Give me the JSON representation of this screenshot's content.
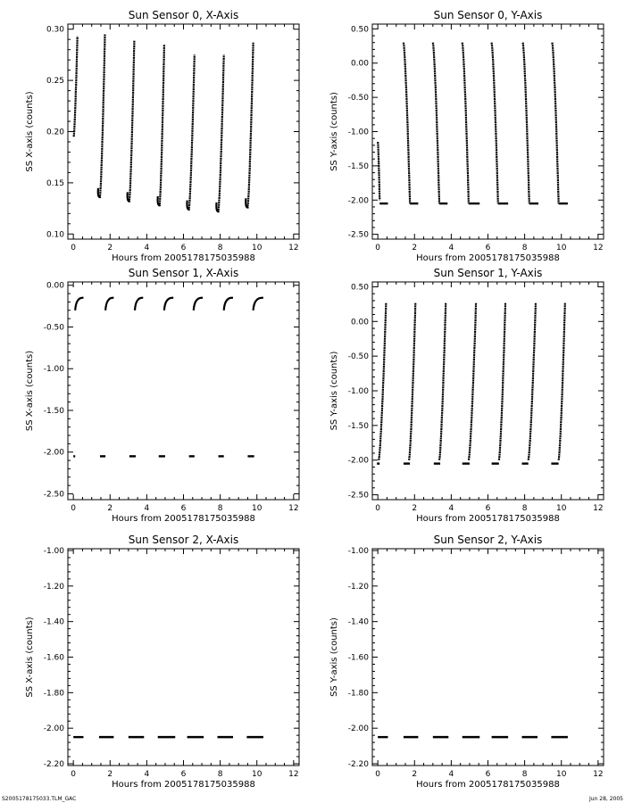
{
  "footer": {
    "filename": "S2005178175033.TLM_GAC",
    "date": "Jun 28, 2005"
  },
  "chart_data": [
    {
      "type": "scatter",
      "title": "Sun Sensor 0, X-Axis",
      "xlabel": "Hours from 2005178175035988",
      "ylabel": "SS X-axis (counts)",
      "xlim": [
        -0.3,
        12.3
      ],
      "ylim": [
        0.095,
        0.305
      ],
      "xticks": [
        0,
        2,
        4,
        6,
        8,
        10,
        12
      ],
      "xtick_labels": [
        "0",
        "2",
        "4",
        "6",
        "8",
        "10",
        "12"
      ],
      "yticks": [
        0.1,
        0.15,
        0.2,
        0.25,
        0.3
      ],
      "ytick_labels": [
        "0.10",
        "0.15",
        "0.20",
        "0.25",
        "0.30"
      ],
      "series": [
        {
          "segments": [
            {
              "x0": 0.02,
              "x1": 0.22,
              "y0": 0.195,
              "y1": 0.293
            },
            {
              "x0": 1.45,
              "x1": 1.72,
              "y0": 0.137,
              "y1": 0.295,
              "hook": true
            },
            {
              "x0": 3.05,
              "x1": 3.32,
              "y0": 0.133,
              "y1": 0.289,
              "hook": true
            },
            {
              "x0": 4.7,
              "x1": 4.95,
              "y0": 0.129,
              "y1": 0.285,
              "hook": true
            },
            {
              "x0": 6.3,
              "x1": 6.6,
              "y0": 0.125,
              "y1": 0.275,
              "hook": true
            },
            {
              "x0": 7.9,
              "x1": 8.2,
              "y0": 0.123,
              "y1": 0.275,
              "hook": true
            },
            {
              "x0": 9.5,
              "x1": 9.8,
              "y0": 0.127,
              "y1": 0.287,
              "hook": true
            }
          ]
        }
      ]
    },
    {
      "type": "scatter",
      "title": "Sun Sensor 0, Y-Axis",
      "xlabel": "Hours from 2005178175035988",
      "ylabel": "SS Y-axis (counts)",
      "xlim": [
        -0.3,
        12.3
      ],
      "ylim": [
        -2.57,
        0.57
      ],
      "xticks": [
        0,
        2,
        4,
        6,
        8,
        10,
        12
      ],
      "xtick_labels": [
        "0",
        "2",
        "4",
        "6",
        "8",
        "10",
        "12"
      ],
      "yticks": [
        0.5,
        0.0,
        -0.5,
        -1.0,
        -1.5,
        -2.0,
        -2.5
      ],
      "ytick_labels": [
        "0.50",
        "0.00",
        "-0.50",
        "-1.00",
        "-1.50",
        "-2.00",
        "-2.50"
      ],
      "series": [
        {
          "segments": [
            {
              "x0": 0.0,
              "x1": 0.1,
              "y0": -1.15,
              "y1": -2.0
            },
            {
              "x0": 1.4,
              "x1": 1.75,
              "y0": 0.3,
              "y1": -2.05
            },
            {
              "x0": 3.0,
              "x1": 3.35,
              "y0": 0.3,
              "y1": -2.05
            },
            {
              "x0": 4.6,
              "x1": 4.95,
              "y0": 0.3,
              "y1": -2.05
            },
            {
              "x0": 6.2,
              "x1": 6.55,
              "y0": 0.3,
              "y1": -2.05
            },
            {
              "x0": 7.9,
              "x1": 8.25,
              "y0": 0.3,
              "y1": -2.05
            },
            {
              "x0": 9.5,
              "x1": 9.85,
              "y0": 0.3,
              "y1": -2.05
            }
          ],
          "flats": [
            {
              "x0": 0.1,
              "x1": 0.55,
              "y": -2.05
            },
            {
              "x0": 1.75,
              "x1": 2.2,
              "y": -2.05
            },
            {
              "x0": 3.35,
              "x1": 3.8,
              "y": -2.05
            },
            {
              "x0": 4.95,
              "x1": 5.55,
              "y": -2.05
            },
            {
              "x0": 6.55,
              "x1": 7.1,
              "y": -2.05
            },
            {
              "x0": 8.25,
              "x1": 8.75,
              "y": -2.05
            },
            {
              "x0": 9.85,
              "x1": 10.35,
              "y": -2.05
            }
          ]
        }
      ]
    },
    {
      "type": "scatter",
      "title": "Sun Sensor 1, X-Axis",
      "xlabel": "Hours from 2005178175035988",
      "ylabel": "SS X-axis (counts)",
      "xlim": [
        -0.3,
        12.3
      ],
      "ylim": [
        -2.57,
        0.04
      ],
      "xticks": [
        0,
        2,
        4,
        6,
        8,
        10,
        12
      ],
      "xtick_labels": [
        "0",
        "2",
        "4",
        "6",
        "8",
        "10",
        "12"
      ],
      "yticks": [
        0.0,
        -0.5,
        -1.0,
        -1.5,
        -2.0,
        -2.5
      ],
      "ytick_labels": [
        "0.00",
        "-0.50",
        "-1.00",
        "-1.50",
        "-2.00",
        "-2.50"
      ],
      "series": [
        {
          "arcs": [
            {
              "x0": 0.1,
              "x1": 0.55,
              "y0": -0.3,
              "y1": -0.15
            },
            {
              "x0": 1.75,
              "x1": 2.2,
              "y0": -0.3,
              "y1": -0.15
            },
            {
              "x0": 3.35,
              "x1": 3.8,
              "y0": -0.3,
              "y1": -0.15
            },
            {
              "x0": 4.95,
              "x1": 5.45,
              "y0": -0.3,
              "y1": -0.15
            },
            {
              "x0": 6.55,
              "x1": 7.05,
              "y0": -0.3,
              "y1": -0.15
            },
            {
              "x0": 8.2,
              "x1": 8.7,
              "y0": -0.3,
              "y1": -0.15
            },
            {
              "x0": 9.8,
              "x1": 10.35,
              "y0": -0.3,
              "y1": -0.15
            }
          ],
          "flats": [
            {
              "x0": 0.0,
              "x1": 0.1,
              "y": -2.05
            },
            {
              "x0": 1.45,
              "x1": 1.75,
              "y": -2.05
            },
            {
              "x0": 3.05,
              "x1": 3.4,
              "y": -2.05
            },
            {
              "x0": 4.65,
              "x1": 5.0,
              "y": -2.05
            },
            {
              "x0": 6.3,
              "x1": 6.6,
              "y": -2.05
            },
            {
              "x0": 7.9,
              "x1": 8.2,
              "y": -2.05
            },
            {
              "x0": 9.5,
              "x1": 9.85,
              "y": -2.05
            }
          ]
        }
      ]
    },
    {
      "type": "scatter",
      "title": "Sun Sensor 1, Y-Axis",
      "xlabel": "Hours from 2005178175035988",
      "ylabel": "SS Y-axis (counts)",
      "xlim": [
        -0.3,
        12.3
      ],
      "ylim": [
        -2.57,
        0.57
      ],
      "xticks": [
        0,
        2,
        4,
        6,
        8,
        10,
        12
      ],
      "xtick_labels": [
        "0",
        "2",
        "4",
        "6",
        "8",
        "10",
        "12"
      ],
      "yticks": [
        0.5,
        0.0,
        -0.5,
        -1.0,
        -1.5,
        -2.0,
        -2.5
      ],
      "ytick_labels": [
        "0.50",
        "0.00",
        "-0.50",
        "-1.00",
        "-1.50",
        "-2.00",
        "-2.50"
      ],
      "series": [
        {
          "segments": [
            {
              "x0": 0.05,
              "x1": 0.45,
              "y0": -2.0,
              "y1": 0.27
            },
            {
              "x0": 1.7,
              "x1": 2.05,
              "y0": -2.0,
              "y1": 0.27
            },
            {
              "x0": 3.35,
              "x1": 3.7,
              "y0": -2.0,
              "y1": 0.27
            },
            {
              "x0": 4.95,
              "x1": 5.35,
              "y0": -2.0,
              "y1": 0.27
            },
            {
              "x0": 6.6,
              "x1": 6.95,
              "y0": -2.0,
              "y1": 0.27
            },
            {
              "x0": 8.2,
              "x1": 8.6,
              "y0": -2.0,
              "y1": 0.27
            },
            {
              "x0": 9.85,
              "x1": 10.2,
              "y0": -2.0,
              "y1": 0.27
            }
          ],
          "flats": [
            {
              "x0": -0.05,
              "x1": 0.1,
              "y": -2.05
            },
            {
              "x0": 1.4,
              "x1": 1.75,
              "y": -2.05
            },
            {
              "x0": 3.05,
              "x1": 3.4,
              "y": -2.05
            },
            {
              "x0": 4.6,
              "x1": 5.0,
              "y": -2.05
            },
            {
              "x0": 6.2,
              "x1": 6.6,
              "y": -2.05
            },
            {
              "x0": 7.85,
              "x1": 8.2,
              "y": -2.05
            },
            {
              "x0": 9.45,
              "x1": 9.85,
              "y": -2.05
            }
          ]
        }
      ]
    },
    {
      "type": "scatter",
      "title": "Sun Sensor 2, X-Axis",
      "xlabel": "Hours from 2005178175035988",
      "ylabel": "SS X-axis (counts)",
      "xlim": [
        -0.3,
        12.3
      ],
      "ylim": [
        -2.21,
        -0.99
      ],
      "xticks": [
        0,
        2,
        4,
        6,
        8,
        10,
        12
      ],
      "xtick_labels": [
        "0",
        "2",
        "4",
        "6",
        "8",
        "10",
        "12"
      ],
      "yticks": [
        -1.0,
        -1.2,
        -1.4,
        -1.6,
        -1.8,
        -2.0,
        -2.2
      ],
      "ytick_labels": [
        "-1.00",
        "-1.20",
        "-1.40",
        "-1.60",
        "-1.80",
        "-2.00",
        "-2.20"
      ],
      "series": [
        {
          "flats": [
            {
              "x0": 0.0,
              "x1": 0.55,
              "y": -2.05
            },
            {
              "x0": 1.4,
              "x1": 2.2,
              "y": -2.05
            },
            {
              "x0": 3.0,
              "x1": 3.85,
              "y": -2.05
            },
            {
              "x0": 4.6,
              "x1": 5.55,
              "y": -2.05
            },
            {
              "x0": 6.2,
              "x1": 7.1,
              "y": -2.05
            },
            {
              "x0": 7.85,
              "x1": 8.7,
              "y": -2.05
            },
            {
              "x0": 9.45,
              "x1": 10.35,
              "y": -2.05
            }
          ]
        }
      ]
    },
    {
      "type": "scatter",
      "title": "Sun Sensor 2, Y-Axis",
      "xlabel": "Hours from 2005178175035988",
      "ylabel": "SS Y-axis (counts)",
      "xlim": [
        -0.3,
        12.3
      ],
      "ylim": [
        -2.21,
        -0.99
      ],
      "xticks": [
        0,
        2,
        4,
        6,
        8,
        10,
        12
      ],
      "xtick_labels": [
        "0",
        "2",
        "4",
        "6",
        "8",
        "10",
        "12"
      ],
      "yticks": [
        -1.0,
        -1.2,
        -1.4,
        -1.6,
        -1.8,
        -2.0,
        -2.2
      ],
      "ytick_labels": [
        "-1.00",
        "-1.20",
        "-1.40",
        "-1.60",
        "-1.80",
        "-2.00",
        "-2.20"
      ],
      "series": [
        {
          "flats": [
            {
              "x0": 0.0,
              "x1": 0.55,
              "y": -2.05
            },
            {
              "x0": 1.4,
              "x1": 2.2,
              "y": -2.05
            },
            {
              "x0": 3.0,
              "x1": 3.85,
              "y": -2.05
            },
            {
              "x0": 4.6,
              "x1": 5.55,
              "y": -2.05
            },
            {
              "x0": 6.2,
              "x1": 7.1,
              "y": -2.05
            },
            {
              "x0": 7.85,
              "x1": 8.7,
              "y": -2.05
            },
            {
              "x0": 9.45,
              "x1": 10.35,
              "y": -2.05
            }
          ]
        }
      ]
    }
  ]
}
